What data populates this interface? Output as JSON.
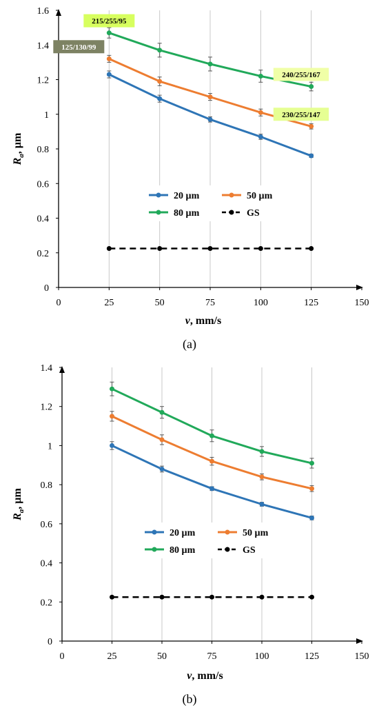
{
  "palette": {
    "20um": "#2e75b6",
    "50um": "#ed7d31",
    "80um": "#21a95a",
    "GS": "#000000",
    "grid": "#c8c8c8",
    "axis": "#000000"
  },
  "chart_data": [
    {
      "type": "line",
      "caption": "(a)",
      "xlabel_var": "v",
      "xlabel_rest": ", mm/s",
      "ylabel_var": "R",
      "ylabel_sub": "a",
      "ylabel_rest": ", µm",
      "xlim": [
        0,
        150
      ],
      "ylim": [
        0,
        1.6
      ],
      "xticks": [
        0,
        25,
        50,
        75,
        100,
        125,
        150
      ],
      "yticks": [
        0,
        0.2,
        0.4,
        0.6,
        0.8,
        1,
        1.2,
        1.4,
        1.6
      ],
      "ytick_labels": [
        "0",
        "0.2",
        "0.4",
        "0.6",
        "0.8",
        "1",
        "1.2",
        "1.4",
        "1.6"
      ],
      "grid": "vertical",
      "legend_position": "lower-middle",
      "x": [
        25,
        50,
        75,
        100,
        125
      ],
      "series": [
        {
          "name": "20 µm",
          "color": "20um",
          "values": [
            1.23,
            1.09,
            0.97,
            0.87,
            0.76
          ],
          "errors": [
            0.02,
            0.02,
            0.015,
            0.015,
            0.01
          ],
          "style": "solid"
        },
        {
          "name": "50 µm",
          "color": "50um",
          "values": [
            1.32,
            1.19,
            1.1,
            1.01,
            0.93
          ],
          "errors": [
            0.02,
            0.025,
            0.02,
            0.02,
            0.015
          ],
          "style": "solid"
        },
        {
          "name": "80 µm",
          "color": "80um",
          "values": [
            1.47,
            1.37,
            1.29,
            1.22,
            1.16
          ],
          "errors": [
            0.03,
            0.04,
            0.04,
            0.035,
            0.025
          ],
          "style": "solid"
        },
        {
          "name": "GS",
          "color": "GS",
          "values": [
            0.225,
            0.225,
            0.225,
            0.225,
            0.225
          ],
          "errors": [
            0,
            0,
            0,
            0,
            0
          ],
          "style": "dashed"
        }
      ],
      "annotations": [
        {
          "text": "215/255/95",
          "bg": "#d7ff5f",
          "fg": "#000000",
          "x": 25,
          "y": 1.54
        },
        {
          "text": "125/130/99",
          "bg": "#7d8263",
          "fg": "#ffffff",
          "x": 10,
          "y": 1.39
        },
        {
          "text": "240/255/167",
          "bg": "#f0ffa7",
          "fg": "#000000",
          "x": 120,
          "y": 1.23
        },
        {
          "text": "230/255/147",
          "bg": "#e6ff93",
          "fg": "#000000",
          "x": 120,
          "y": 1.0
        }
      ]
    },
    {
      "type": "line",
      "caption": "(b)",
      "xlabel_var": "v",
      "xlabel_rest": ", mm/s",
      "ylabel_var": "R",
      "ylabel_sub": "a",
      "ylabel_rest": ", µm",
      "xlim": [
        0,
        150
      ],
      "ylim": [
        0,
        1.4
      ],
      "xticks": [
        0,
        25,
        50,
        75,
        100,
        125,
        150
      ],
      "yticks": [
        0,
        0.2,
        0.4,
        0.6,
        0.8,
        1,
        1.2,
        1.4
      ],
      "ytick_labels": [
        "0",
        "0.2",
        "0.4",
        "0.6",
        "0.8",
        "1",
        "1.2",
        "1.4"
      ],
      "grid": "vertical",
      "legend_position": "lower-middle",
      "x": [
        25,
        50,
        75,
        100,
        125
      ],
      "series": [
        {
          "name": "20 µm",
          "color": "20um",
          "values": [
            1.0,
            0.88,
            0.78,
            0.7,
            0.63
          ],
          "errors": [
            0.02,
            0.015,
            0.01,
            0.01,
            0.01
          ],
          "style": "solid"
        },
        {
          "name": "50 µm",
          "color": "50um",
          "values": [
            1.15,
            1.03,
            0.92,
            0.84,
            0.78
          ],
          "errors": [
            0.025,
            0.025,
            0.02,
            0.015,
            0.015
          ],
          "style": "solid"
        },
        {
          "name": "80 µm",
          "color": "80um",
          "values": [
            1.29,
            1.17,
            1.05,
            0.97,
            0.91
          ],
          "errors": [
            0.035,
            0.03,
            0.03,
            0.025,
            0.025
          ],
          "style": "solid"
        },
        {
          "name": "GS",
          "color": "GS",
          "values": [
            0.225,
            0.225,
            0.225,
            0.225,
            0.225
          ],
          "errors": [
            0,
            0,
            0,
            0,
            0
          ],
          "style": "dashed"
        }
      ],
      "annotations": []
    }
  ]
}
